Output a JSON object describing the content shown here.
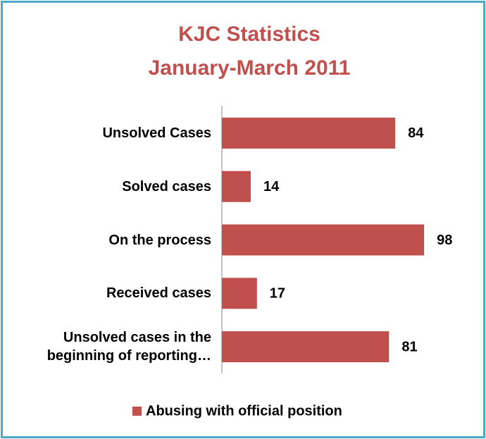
{
  "chart_data": {
    "type": "bar",
    "orientation": "horizontal",
    "title": [
      "KJC Statistics",
      "January-March 2011"
    ],
    "categories": [
      "Unsolved Cases",
      "Solved cases",
      "On the process",
      "Received cases",
      "Unsolved cases in the beginning of reporting…"
    ],
    "series": [
      {
        "name": "Abusing with official position",
        "color": "#c0504d",
        "values": [
          84,
          14,
          98,
          17,
          81
        ]
      }
    ],
    "legend": "bottom"
  }
}
